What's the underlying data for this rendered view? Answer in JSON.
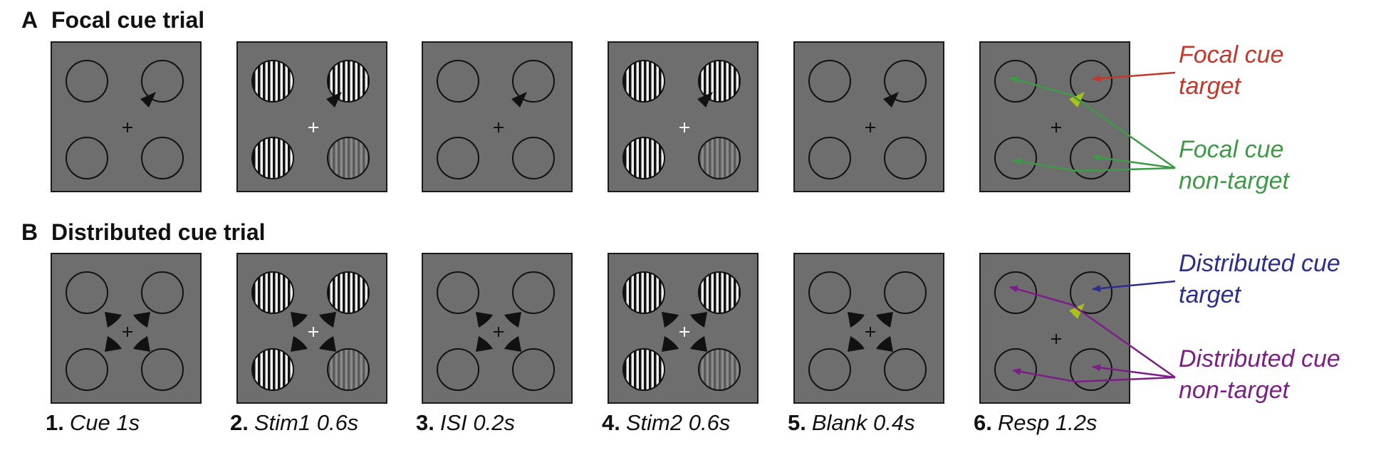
{
  "panels": [
    {
      "letter": "A",
      "title": "Focal cue trial"
    },
    {
      "letter": "B",
      "title": "Distributed cue trial"
    }
  ],
  "steps": [
    {
      "num": "1.",
      "label": "Cue 1s"
    },
    {
      "num": "2.",
      "label": "Stim1 0.6s"
    },
    {
      "num": "3.",
      "label": "ISI 0.2s"
    },
    {
      "num": "4.",
      "label": "Stim2 0.6s"
    },
    {
      "num": "5.",
      "label": "Blank 0.4s"
    },
    {
      "num": "6.",
      "label": "Resp 1.2s"
    }
  ],
  "annotations": {
    "focal_target": {
      "line1": "Focal cue",
      "line2": "target",
      "color": "#c0392b"
    },
    "focal_nontarget": {
      "line1": "Focal cue",
      "line2": "non-target",
      "color": "#3d9a46"
    },
    "dist_target": {
      "line1": "Distributed cue",
      "line2": "target",
      "color": "#2b2f8c"
    },
    "dist_nontarget": {
      "line1": "Distributed cue",
      "line2": "non-target",
      "color": "#7b1f86"
    }
  },
  "colors": {
    "screen_bg": "#6e6e6e",
    "response_cue": "#a6c21c",
    "fixation_dark": "#111111",
    "fixation_light": "#ffffff"
  }
}
